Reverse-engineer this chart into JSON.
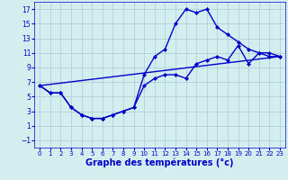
{
  "xlabel": "Graphe des températures (°c)",
  "background_color": "#d4eef0",
  "grid_color": "#aaccd8",
  "line_color": "#0000cc",
  "marker": "D",
  "markersize": 2.0,
  "xlim": [
    -0.5,
    23.5
  ],
  "ylim": [
    -2,
    18
  ],
  "xticks": [
    0,
    1,
    2,
    3,
    4,
    5,
    6,
    7,
    8,
    9,
    10,
    11,
    12,
    13,
    14,
    15,
    16,
    17,
    18,
    19,
    20,
    21,
    22,
    23
  ],
  "yticks": [
    -1,
    1,
    3,
    5,
    7,
    9,
    11,
    13,
    15,
    17
  ],
  "series1_x": [
    0,
    1,
    2,
    3,
    4,
    5,
    6,
    7,
    8,
    9,
    10,
    11,
    12,
    13,
    14,
    15,
    16,
    17,
    18,
    19,
    20,
    21,
    22,
    23
  ],
  "series1_y": [
    6.5,
    5.5,
    5.5,
    3.5,
    2.5,
    2.0,
    2.0,
    2.5,
    3.0,
    3.5,
    8.0,
    10.5,
    11.5,
    15.0,
    17.0,
    16.5,
    17.0,
    14.5,
    13.5,
    12.5,
    11.5,
    11.0,
    11.0,
    10.5
  ],
  "series2_x": [
    0,
    1,
    2,
    3,
    4,
    5,
    6,
    7,
    8,
    9,
    10,
    11,
    12,
    13,
    14,
    15,
    16,
    17,
    18,
    19,
    20,
    21,
    22,
    23
  ],
  "series2_y": [
    6.5,
    5.5,
    5.5,
    3.5,
    2.5,
    2.0,
    2.0,
    2.5,
    3.0,
    3.5,
    6.5,
    7.5,
    8.0,
    8.0,
    7.5,
    9.5,
    10.0,
    10.5,
    10.0,
    12.0,
    9.5,
    11.0,
    10.5,
    10.5
  ],
  "series3_x": [
    0,
    23
  ],
  "series3_y": [
    6.5,
    10.5
  ],
  "xlabel_fontsize": 7,
  "xlabel_color": "#0000cc",
  "tick_fontsize": 5.5,
  "tick_color": "#0000cc",
  "linewidth": 1.0
}
